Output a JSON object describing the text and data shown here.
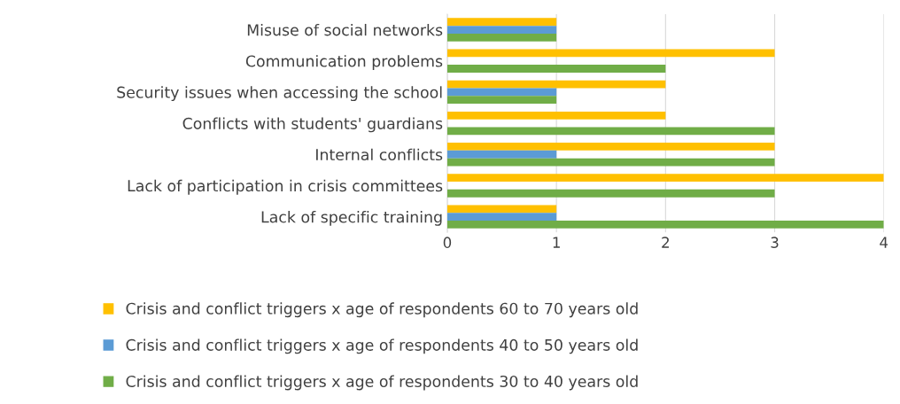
{
  "chart_data": {
    "type": "bar",
    "orientation": "horizontal",
    "categories": [
      "Misuse of social networks",
      "Communication problems",
      "Security issues when accessing the school",
      "Conflicts with students' guardians",
      "Internal conflicts",
      "Lack of participation in crisis committees",
      "Lack of specific training"
    ],
    "series": [
      {
        "name": "Crisis and conflict triggers x age of respondents 60 to 70 years old",
        "color": "#ffc000",
        "values": [
          1,
          3,
          2,
          2,
          3,
          4,
          1
        ]
      },
      {
        "name": "Crisis and conflict triggers x age of respondents 40 to 50 years old",
        "color": "#5b9bd5",
        "values": [
          1,
          0,
          1,
          0,
          1,
          0,
          1
        ]
      },
      {
        "name": "Crisis and conflict triggers x age of respondents 30 to 40 years old",
        "color": "#70ad47",
        "values": [
          1,
          2,
          1,
          3,
          3,
          3,
          4
        ]
      }
    ],
    "xlim": [
      0,
      4
    ],
    "xticks": [
      0,
      1,
      2,
      3,
      4
    ],
    "grid": "x",
    "legend": "bottom"
  }
}
